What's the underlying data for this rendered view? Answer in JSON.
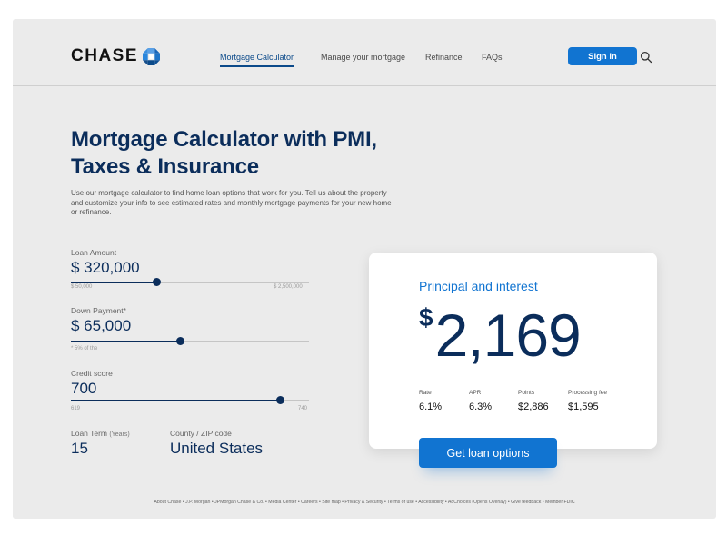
{
  "header": {
    "logo_text": "CHASE",
    "nav": [
      {
        "label": "Mortgage Calculator",
        "active": true
      },
      {
        "label": "Manage your mortgage",
        "active": false
      },
      {
        "label": "Refinance",
        "active": false
      },
      {
        "label": "FAQs",
        "active": false
      }
    ],
    "signin_label": "Sign in"
  },
  "hero": {
    "title_line1": "Mortgage Calculator with PMI,",
    "title_line2": "Taxes & Insurance",
    "description": "Use our mortgage calculator to find home loan options that work for you. Tell us about the property and customize your info to see estimated rates and monthly mortgage payments for your new home or refinance."
  },
  "form": {
    "loan_amount": {
      "label": "Loan Amount",
      "value": "$ 320,000",
      "min_label": "$ 50,000",
      "max_label": "$ 2,500,000",
      "slider_fraction": 0.36
    },
    "down_payment": {
      "label": "Down Payment*",
      "value": "$ 65,000",
      "hint": "*  5% of the",
      "slider_fraction": 0.46
    },
    "credit_score": {
      "label": "Credit score",
      "value": "700",
      "min_label": "619",
      "max_label": "740",
      "slider_fraction": 0.88
    },
    "loan_term": {
      "label": "Loan Term",
      "label_suffix": "(Years)",
      "value": "15"
    },
    "county": {
      "label": "County / ZIP code",
      "value": "United States"
    }
  },
  "result": {
    "title": "Principal and interest",
    "currency": "$",
    "amount": "2,169",
    "stats": [
      {
        "label": "Rate",
        "value": "6.1%"
      },
      {
        "label": "APR",
        "value": "6.3%"
      },
      {
        "label": "Points",
        "value": "$2,886"
      },
      {
        "label": "Processing fee",
        "value": "$1,595"
      }
    ],
    "cta_label": "Get loan options"
  },
  "footer": {
    "text": "About Chase • J.P. Morgan • JPMorgan Chase & Co. • Media Center • Careers • Site map • Privacy & Security • Terms of use • Accessibility • AdChoices (Opens Overlay) • Give feedback • Member FDIC"
  },
  "colors": {
    "brand_navy": "#0b2d5b",
    "accent_blue": "#1174d1",
    "background": "#ebebeb"
  }
}
